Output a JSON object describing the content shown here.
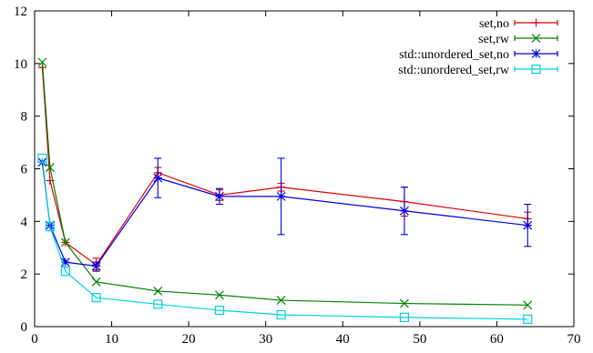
{
  "chart_data": {
    "type": "line",
    "title": "",
    "xlabel": "",
    "ylabel": "",
    "xlim": [
      0,
      70
    ],
    "ylim": [
      0,
      12
    ],
    "x_ticks": [
      "0",
      "10",
      "20",
      "30",
      "40",
      "50",
      "60",
      "70"
    ],
    "y_ticks": [
      "0",
      "2",
      "4",
      "6",
      "8",
      "10",
      "12"
    ],
    "grid": false,
    "legend_position": "top-right",
    "series": [
      {
        "name": "set,no",
        "color": "#e00000",
        "marker": "plus",
        "x": [
          1,
          2,
          4,
          8,
          16,
          24,
          32,
          48,
          64
        ],
        "y": [
          9.85,
          5.55,
          3.2,
          2.35,
          5.85,
          5.0,
          5.3,
          4.75,
          4.1
        ],
        "err": [
          0,
          0,
          0,
          0.25,
          0.2,
          0.2,
          0.15,
          0.55,
          0.25
        ]
      },
      {
        "name": "set,rw",
        "color": "#008000",
        "marker": "cross",
        "x": [
          1,
          2,
          4,
          8,
          16,
          24,
          32,
          48,
          64
        ],
        "y": [
          10.05,
          6.05,
          3.2,
          1.7,
          1.35,
          1.2,
          1.0,
          0.88,
          0.82
        ],
        "err": [
          0,
          0,
          0,
          0,
          0,
          0,
          0,
          0,
          0
        ]
      },
      {
        "name": "std::unordered_set,no",
        "color": "#0000e0",
        "marker": "star",
        "x": [
          1,
          2,
          4,
          8,
          16,
          24,
          32,
          48,
          64
        ],
        "y": [
          6.25,
          3.85,
          2.45,
          2.3,
          5.65,
          4.95,
          4.95,
          4.4,
          3.85
        ],
        "err": [
          0,
          0,
          0,
          0.15,
          0.75,
          0.3,
          1.45,
          0.9,
          0.8
        ]
      },
      {
        "name": "std::unordered_set,rw",
        "color": "#00d0e0",
        "marker": "square",
        "x": [
          1,
          2,
          4,
          8,
          16,
          24,
          32,
          48,
          64
        ],
        "y": [
          6.4,
          3.8,
          2.1,
          1.1,
          0.85,
          0.62,
          0.45,
          0.35,
          0.28
        ],
        "err": [
          0,
          0,
          0,
          0,
          0,
          0,
          0,
          0,
          0
        ]
      }
    ]
  }
}
